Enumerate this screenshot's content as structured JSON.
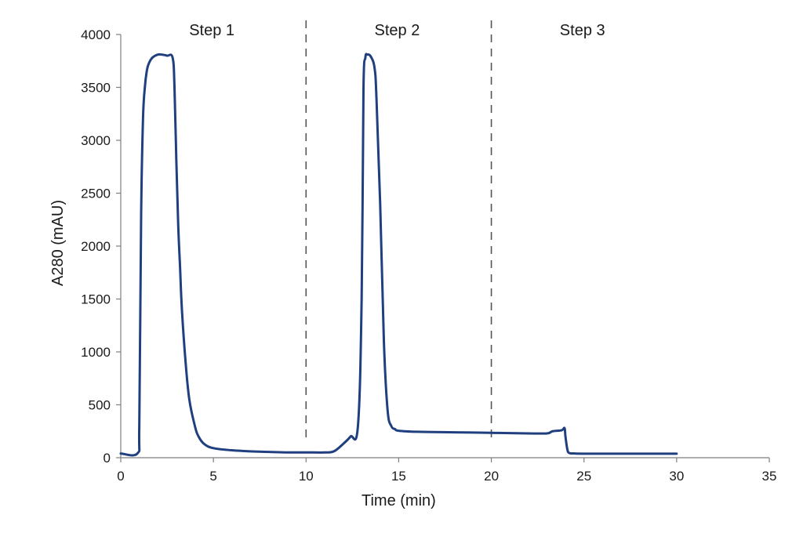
{
  "chart_data": {
    "type": "line",
    "title": "",
    "xlabel": "Time (min)",
    "ylabel": "A280 (mAU)",
    "xlim": [
      0,
      35
    ],
    "ylim": [
      0,
      4000
    ],
    "xticks": [
      0,
      5,
      10,
      15,
      20,
      25,
      30,
      35
    ],
    "yticks": [
      0,
      500,
      1000,
      1500,
      2000,
      2500,
      3000,
      3500,
      4000
    ],
    "grid": false,
    "line_color": "#1f3f7f",
    "step_dividers": [
      10,
      20
    ],
    "step_labels": [
      {
        "text": "Step 1",
        "x": 5
      },
      {
        "text": "Step 2",
        "x": 15
      },
      {
        "text": "Step 3",
        "x": 25
      }
    ],
    "series": [
      {
        "x": [
          0,
          0.9,
          1.0,
          1.1,
          1.2,
          1.3,
          1.4,
          1.5,
          1.7,
          2.0,
          2.2,
          2.5,
          2.8,
          2.9,
          3.0,
          3.1,
          3.2,
          3.3,
          3.5,
          3.7,
          4.0,
          4.2,
          4.5,
          5.0,
          6.0,
          7.0,
          8.0,
          9.0,
          10.0,
          11.0,
          11.5,
          12.0,
          12.4,
          12.8,
          13.0,
          13.1,
          13.2,
          13.3,
          13.5,
          13.7,
          13.8,
          14.0,
          14.2,
          14.4,
          14.6,
          14.8,
          15.0,
          16.0,
          18.0,
          20.0,
          22.0,
          23.0,
          23.3,
          23.8,
          23.95,
          24.0,
          24.1,
          24.2,
          24.5,
          25.0,
          26.0,
          28.0,
          30.0
        ],
        "y": [
          40,
          40,
          300,
          2300,
          3200,
          3500,
          3650,
          3720,
          3780,
          3810,
          3810,
          3800,
          3780,
          3500,
          2800,
          2200,
          1800,
          1400,
          900,
          550,
          300,
          200,
          130,
          90,
          70,
          60,
          55,
          50,
          50,
          50,
          60,
          130,
          200,
          300,
          1500,
          3500,
          3780,
          3810,
          3790,
          3680,
          3400,
          2400,
          1100,
          450,
          300,
          270,
          255,
          245,
          240,
          235,
          230,
          230,
          250,
          260,
          280,
          200,
          80,
          45,
          40,
          38,
          38,
          38,
          38
        ]
      }
    ]
  }
}
